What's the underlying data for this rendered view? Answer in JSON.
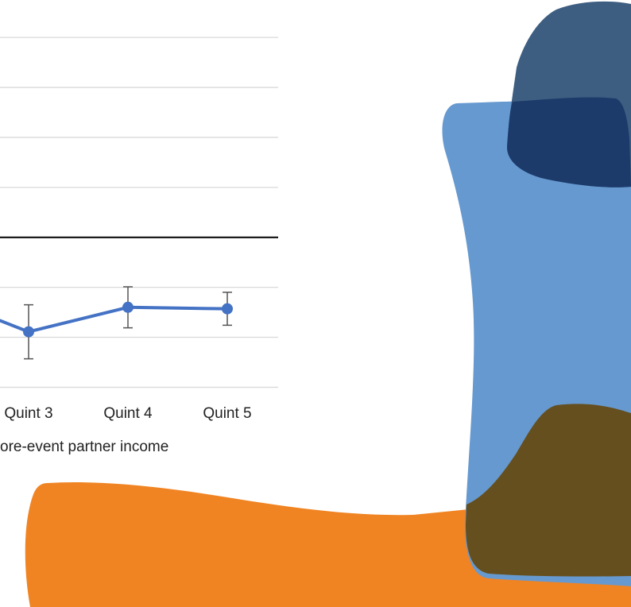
{
  "chart_data": {
    "type": "line",
    "categories": [
      null,
      "Quint 3",
      "Quint 4",
      "Quint 5"
    ],
    "series": [
      {
        "color": "#4472c4",
        "values": [
          -1.11,
          -1.89,
          -1.4,
          -1.43
        ],
        "errors": [
          null,
          0.54,
          0.41,
          0.33
        ]
      }
    ],
    "x_label": "ore-event partner income",
    "ylim": [
      -3.2,
      4.4
    ],
    "yticks": [
      4,
      3,
      2,
      1,
      0,
      -1,
      -2,
      -3
    ],
    "grid": true,
    "zero_line": true
  }
}
